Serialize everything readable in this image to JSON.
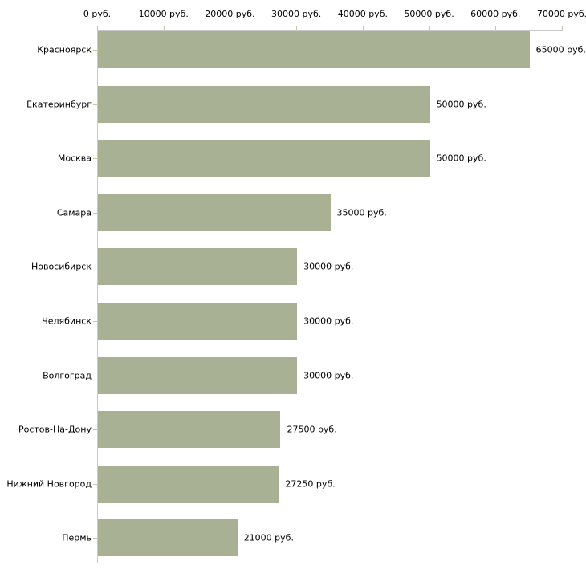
{
  "chart_data": {
    "type": "bar",
    "orientation": "horizontal",
    "title": "",
    "categories": [
      "Красноярск",
      "Екатеринбург",
      "Москва",
      "Самара",
      "Новосибирск",
      "Челябинск",
      "Волгоград",
      "Ростов-На-Дону",
      "Нижний Новгород",
      "Пермь"
    ],
    "values": [
      65000,
      50000,
      50000,
      35000,
      30000,
      30000,
      30000,
      27500,
      27250,
      21000
    ],
    "value_labels": [
      "65000 руб.",
      "50000 руб.",
      "50000 руб.",
      "35000 руб.",
      "30000 руб.",
      "30000 руб.",
      "30000 руб.",
      "27500 руб.",
      "27250 руб.",
      "21000 руб."
    ],
    "x_axis": {
      "position": "top",
      "min": 0,
      "max": 70000,
      "step": 10000,
      "tick_values": [
        0,
        10000,
        20000,
        30000,
        40000,
        50000,
        60000,
        70000
      ],
      "tick_labels": [
        "0 руб.",
        "10000 руб.",
        "20000 руб.",
        "30000 руб.",
        "40000 руб.",
        "50000 руб.",
        "60000 руб.",
        "70000 руб."
      ]
    },
    "ylabel": "",
    "xlabel": "",
    "grid": false,
    "legend": false,
    "colors": {
      "bar": "#a9b194",
      "tick_mark": "#c8c8a0",
      "axis": "#c9c9c9",
      "text": "#000000",
      "background": "#ffffff"
    }
  }
}
